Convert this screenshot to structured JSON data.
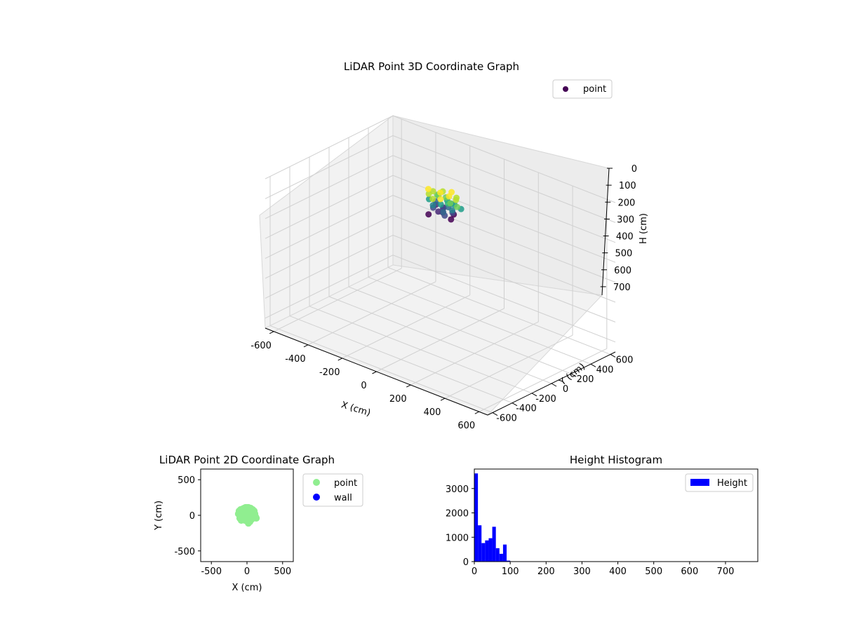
{
  "chart_data": [
    {
      "type": "scatter",
      "projection": "3d",
      "title": "LiDAR Point 3D Coordinate Graph",
      "xlabel": "X (cm)",
      "ylabel": "Y (cm)",
      "zlabel": "H (cm)",
      "xlim": [
        -650,
        650
      ],
      "ylim": [
        -650,
        650
      ],
      "zlim": [
        750,
        0
      ],
      "z_inverted": true,
      "xticks": [
        -600,
        -400,
        -200,
        0,
        200,
        400,
        600
      ],
      "yticks": [
        -600,
        -400,
        -200,
        0,
        200,
        400,
        600
      ],
      "zticks": [
        0,
        100,
        200,
        300,
        400,
        500,
        600,
        700
      ],
      "colormap": "viridis",
      "colored_by": "height",
      "legend": {
        "placement": "upper-right",
        "entries": [
          "point"
        ],
        "marker_color": "#440154"
      },
      "series": [
        {
          "name": "point",
          "points": [
            {
              "x": -60,
              "y": 30,
              "z": 30
            },
            {
              "x": -20,
              "y": 60,
              "z": 25
            },
            {
              "x": 20,
              "y": 80,
              "z": 20
            },
            {
              "x": 60,
              "y": 60,
              "z": 30
            },
            {
              "x": 80,
              "y": 20,
              "z": 25
            },
            {
              "x": 70,
              "y": -20,
              "z": 35
            },
            {
              "x": 30,
              "y": -50,
              "z": 20
            },
            {
              "x": -10,
              "y": -60,
              "z": 30
            },
            {
              "x": -50,
              "y": -30,
              "z": 25
            },
            {
              "x": -70,
              "y": 0,
              "z": 15
            },
            {
              "x": 0,
              "y": 0,
              "z": 10
            },
            {
              "x": 40,
              "y": 20,
              "z": 20
            },
            {
              "x": -30,
              "y": 20,
              "z": 35
            },
            {
              "x": 10,
              "y": 40,
              "z": 40
            },
            {
              "x": 50,
              "y": -10,
              "z": 45
            },
            {
              "x": -40,
              "y": 50,
              "z": 50
            },
            {
              "x": 20,
              "y": -30,
              "z": 55
            },
            {
              "x": 60,
              "y": 40,
              "z": 60
            },
            {
              "x": -60,
              "y": -10,
              "z": 60
            },
            {
              "x": 0,
              "y": 70,
              "z": 65
            },
            {
              "x": 30,
              "y": 60,
              "z": 70
            },
            {
              "x": -20,
              "y": -40,
              "z": 70
            },
            {
              "x": 70,
              "y": 0,
              "z": 75
            },
            {
              "x": -50,
              "y": 40,
              "z": 80
            },
            {
              "x": 40,
              "y": -40,
              "z": 85
            },
            {
              "x": 10,
              "y": 10,
              "z": 90
            },
            {
              "x": -30,
              "y": -20,
              "z": 90
            },
            {
              "x": 60,
              "y": 20,
              "z": 95
            },
            {
              "x": -10,
              "y": 50,
              "z": 100
            },
            {
              "x": 20,
              "y": -10,
              "z": 100
            },
            {
              "x": -60,
              "y": 60,
              "z": 105
            },
            {
              "x": 80,
              "y": -30,
              "z": 110
            },
            {
              "x": 50,
              "y": 50,
              "z": 115
            },
            {
              "x": -40,
              "y": -50,
              "z": 120
            },
            {
              "x": 0,
              "y": -20,
              "z": 100
            },
            {
              "x": 30,
              "y": 30,
              "z": 80
            },
            {
              "x": 110,
              "y": -20,
              "z": 40
            },
            {
              "x": 110,
              "y": 20,
              "z": 60
            },
            {
              "x": 60,
              "y": -60,
              "z": 90
            }
          ]
        }
      ]
    },
    {
      "type": "scatter",
      "title": "LiDAR Point 2D Coordinate Graph",
      "xlabel": "X (cm)",
      "ylabel": "Y (cm)",
      "xlim": [
        -650,
        650
      ],
      "ylim": [
        -650,
        650
      ],
      "xticks": [
        -500,
        0,
        500
      ],
      "yticks": [
        -500,
        0,
        500
      ],
      "legend": {
        "placement": "outside-right",
        "entries": [
          "point",
          "wall"
        ]
      },
      "series": [
        {
          "name": "point",
          "color": "#90ee90",
          "points": [
            {
              "x": -120,
              "y": 20
            },
            {
              "x": -110,
              "y": 60
            },
            {
              "x": -100,
              "y": -40
            },
            {
              "x": -90,
              "y": 80
            },
            {
              "x": -80,
              "y": -70
            },
            {
              "x": -60,
              "y": 90
            },
            {
              "x": -60,
              "y": -60
            },
            {
              "x": -40,
              "y": 100
            },
            {
              "x": -30,
              "y": -70
            },
            {
              "x": -20,
              "y": 110
            },
            {
              "x": 0,
              "y": 110
            },
            {
              "x": 0,
              "y": -80
            },
            {
              "x": 20,
              "y": 110
            },
            {
              "x": 20,
              "y": -110
            },
            {
              "x": 40,
              "y": -90
            },
            {
              "x": 50,
              "y": 100
            },
            {
              "x": 60,
              "y": -60
            },
            {
              "x": 80,
              "y": 80
            },
            {
              "x": 90,
              "y": -40
            },
            {
              "x": 100,
              "y": 60
            },
            {
              "x": 110,
              "y": 20
            },
            {
              "x": 120,
              "y": -20
            },
            {
              "x": 130,
              "y": -40
            },
            {
              "x": 100,
              "y": -10
            },
            {
              "x": 0,
              "y": 0
            },
            {
              "x": -50,
              "y": 20
            },
            {
              "x": 50,
              "y": 20
            },
            {
              "x": -30,
              "y": -20
            },
            {
              "x": 30,
              "y": -30
            },
            {
              "x": 0,
              "y": 50
            },
            {
              "x": -80,
              "y": 10
            },
            {
              "x": 70,
              "y": 40
            }
          ]
        },
        {
          "name": "wall",
          "color": "#0000ff",
          "points": []
        }
      ]
    },
    {
      "type": "bar",
      "histogram": true,
      "title": "Height Histogram",
      "xlabel": "",
      "ylabel": "",
      "xlim": [
        0,
        790
      ],
      "ylim": [
        0,
        3800
      ],
      "xticks": [
        0,
        100,
        200,
        300,
        400,
        500,
        600,
        700
      ],
      "yticks": [
        0,
        1000,
        2000,
        3000
      ],
      "legend": {
        "placement": "upper-right",
        "entries": [
          "Height"
        ]
      },
      "color": "#0000ff",
      "bin_width": 10,
      "series": [
        {
          "name": "Height",
          "bin_edges": [
            0,
            10,
            20,
            30,
            40,
            50,
            60,
            70,
            80,
            90,
            100,
            110
          ],
          "values": [
            3620,
            1490,
            760,
            870,
            960,
            1430,
            550,
            320,
            700,
            40,
            0
          ]
        }
      ]
    }
  ]
}
